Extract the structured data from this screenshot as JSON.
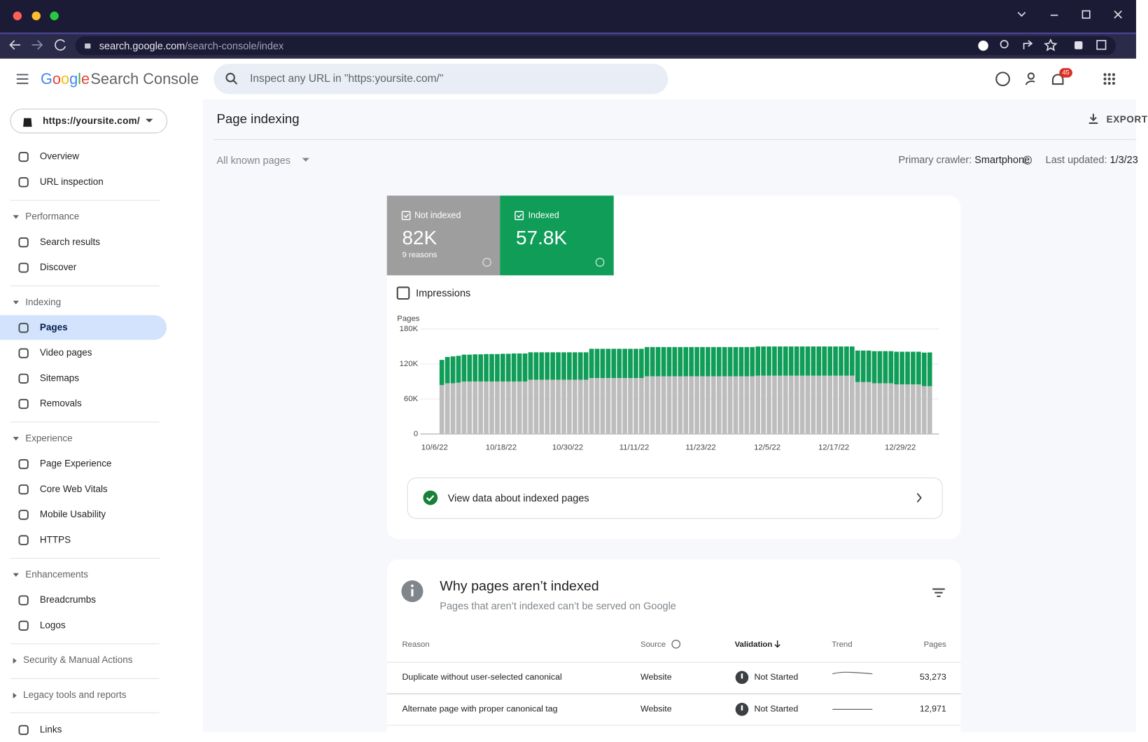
{
  "browser": {
    "url_host": "search.google.com",
    "url_path": "/search-console/index"
  },
  "header": {
    "logo": "Google",
    "product": "Search Console",
    "search_placeholder": "Inspect any URL in \"https:yoursite.com/\"",
    "notifications": "45"
  },
  "sidebar": {
    "property": "https://yoursite.com/",
    "items": [
      {
        "label": "Overview"
      },
      {
        "label": "URL inspection"
      }
    ],
    "sections": [
      {
        "title": "Performance",
        "expanded": true,
        "items": [
          {
            "label": "Search results"
          },
          {
            "label": "Discover"
          }
        ]
      },
      {
        "title": "Indexing",
        "expanded": true,
        "items": [
          {
            "label": "Pages",
            "active": true
          },
          {
            "label": "Video pages"
          },
          {
            "label": "Sitemaps"
          },
          {
            "label": "Removals"
          }
        ]
      },
      {
        "title": "Experience",
        "expanded": true,
        "items": [
          {
            "label": "Page Experience"
          },
          {
            "label": "Core Web Vitals"
          },
          {
            "label": "Mobile Usability"
          },
          {
            "label": "HTTPS"
          }
        ]
      },
      {
        "title": "Enhancements",
        "expanded": true,
        "items": [
          {
            "label": "Breadcrumbs"
          },
          {
            "label": "Logos"
          }
        ]
      },
      {
        "title": "Security & Manual Actions",
        "expanded": false,
        "items": []
      },
      {
        "title": "Legacy tools and reports",
        "expanded": false,
        "items": []
      }
    ],
    "footer_items": [
      {
        "label": "Links"
      }
    ]
  },
  "main": {
    "title": "Page indexing",
    "export": "EXPORT",
    "filter": "All known pages",
    "crawler_label": "Primary crawler:",
    "crawler": "Smartphone",
    "updated_label": "Last updated:",
    "updated": "1/3/23"
  },
  "summary": {
    "not_indexed_value": "82K",
    "not_indexed_sub": "9 reasons",
    "indexed_value": "57.8K",
    "impressions": "Impressions",
    "link": "View data about indexed pages"
  },
  "chart_data": {
    "type": "bar",
    "stacked": true,
    "y_label": "Pages",
    "categories": [
      "10/6/22",
      null,
      null,
      null,
      null,
      null,
      null,
      null,
      null,
      null,
      null,
      null,
      "10/18/22",
      null,
      null,
      null,
      null,
      null,
      null,
      null,
      null,
      null,
      null,
      null,
      "10/30/22",
      null,
      null,
      null,
      null,
      null,
      null,
      null,
      null,
      null,
      null,
      null,
      "11/11/22",
      null,
      null,
      null,
      null,
      null,
      null,
      null,
      null,
      null,
      null,
      null,
      "11/23/22",
      null,
      null,
      null,
      null,
      null,
      null,
      null,
      null,
      null,
      null,
      null,
      "12/5/22",
      null,
      null,
      null,
      null,
      null,
      null,
      null,
      null,
      null,
      null,
      null,
      "12/17/22",
      null,
      null,
      null,
      null,
      null,
      null,
      null,
      null,
      null,
      null,
      null,
      "12/29/22",
      null,
      null,
      null,
      null
    ],
    "series": [
      {
        "name": "Not indexed",
        "color": "#bdbdbd",
        "values": [
          84000,
          87000,
          87000,
          88000,
          90000,
          90000,
          90000,
          90000,
          90000,
          90000,
          90000,
          90000,
          90000,
          90000,
          90000,
          90000,
          93000,
          93000,
          93000,
          93000,
          93000,
          93000,
          93000,
          93000,
          93000,
          93000,
          93000,
          96000,
          96000,
          96000,
          96000,
          96000,
          96000,
          96000,
          96000,
          96000,
          96000,
          99000,
          99000,
          99000,
          99000,
          99000,
          99000,
          99000,
          99000,
          99000,
          99000,
          99000,
          99000,
          99000,
          99000,
          99000,
          99000,
          99000,
          99000,
          99000,
          99000,
          100000,
          100000,
          100000,
          100000,
          100000,
          100000,
          100000,
          100000,
          100000,
          100000,
          100000,
          100000,
          100000,
          100000,
          100000,
          100000,
          100000,
          100000,
          89000,
          89000,
          89000,
          87000,
          87000,
          87000,
          87000,
          85000,
          85000,
          85000,
          85000,
          85000,
          82000,
          82000
        ]
      },
      {
        "name": "Indexed",
        "color": "#0f9d58",
        "values": [
          43000,
          45000,
          46000,
          46000,
          46000,
          46000,
          46500,
          46500,
          47000,
          47000,
          47000,
          47500,
          47500,
          48000,
          48000,
          48000,
          47000,
          47000,
          47000,
          47000,
          47000,
          47000,
          47000,
          47000,
          47000,
          47000,
          47000,
          50000,
          50000,
          50000,
          50000,
          50000,
          50000,
          50000,
          50000,
          50000,
          50000,
          50000,
          50000,
          50000,
          50000,
          50000,
          50000,
          50000,
          50000,
          50000,
          50000,
          50000,
          50000,
          50000,
          50000,
          50000,
          50000,
          50000,
          50000,
          50000,
          50000,
          50000,
          50000,
          50000,
          50000,
          50000,
          50000,
          50000,
          50000,
          50000,
          50000,
          50000,
          50000,
          50000,
          50000,
          50000,
          50000,
          50000,
          50000,
          54000,
          54000,
          54000,
          55000,
          55000,
          55000,
          55000,
          56000,
          56000,
          56000,
          56000,
          56000,
          57500,
          57800
        ]
      }
    ],
    "ylim": [
      0,
      180000
    ],
    "yticks": [
      0,
      {
        "value": 60000,
        "label": "60K"
      },
      {
        "value": 120000,
        "label": "120K"
      },
      {
        "value": 180000,
        "label": "180K"
      }
    ],
    "grid": true
  },
  "table": {
    "title": "Why pages aren’t indexed",
    "subtitle": "Pages that aren’t indexed can’t be served on Google",
    "columns": [
      "Reason",
      "Source",
      "Validation",
      "Trend",
      "Pages"
    ],
    "rows": [
      {
        "reason": "Duplicate without user-selected canonical",
        "source": "Website",
        "validation": "Not Started",
        "pages": "53,273"
      },
      {
        "reason": "Alternate page with proper canonical tag",
        "source": "Website",
        "validation": "Not Started",
        "pages": "12,971"
      }
    ]
  }
}
